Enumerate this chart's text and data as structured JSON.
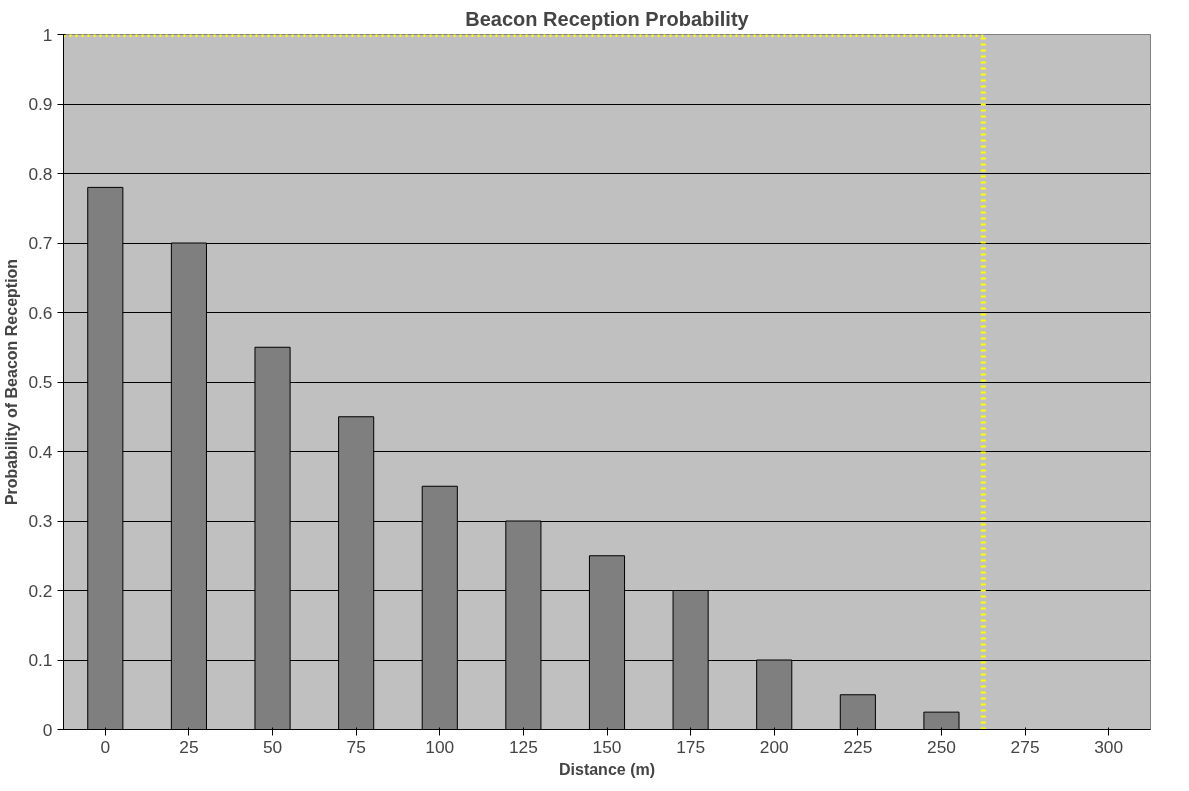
{
  "chart_data": {
    "type": "bar",
    "title": "Beacon Reception Probability",
    "xlabel": "Distance (m)",
    "ylabel": "Probability of Beacon Reception",
    "x": [
      0,
      25,
      50,
      75,
      100,
      125,
      150,
      175,
      200,
      225,
      250
    ],
    "series": [
      {
        "color": "#7f7f7f",
        "values": [
          0.78,
          0.7,
          0.55,
          0.45,
          0.35,
          0.3,
          0.25,
          0.2,
          0.1,
          0.05,
          0.025
        ]
      }
    ],
    "ref_lines": [
      {
        "axis": "x",
        "value": 262.5,
        "color": "#ffff00",
        "line_style": "dotted"
      },
      {
        "axis": "y",
        "value": 1,
        "color": "#ffff00",
        "line_style": "dotted"
      }
    ],
    "xlim": [
      -12.5,
      312.5
    ],
    "xticks": [
      0,
      25,
      50,
      75,
      100,
      125,
      150,
      175,
      200,
      225,
      250,
      275,
      300
    ],
    "ylim": [
      0,
      1
    ],
    "yticks": [
      0,
      0.1,
      0.2,
      0.3,
      0.4,
      0.5,
      0.6,
      0.7,
      0.8,
      0.9,
      1
    ],
    "grid": "y"
  }
}
